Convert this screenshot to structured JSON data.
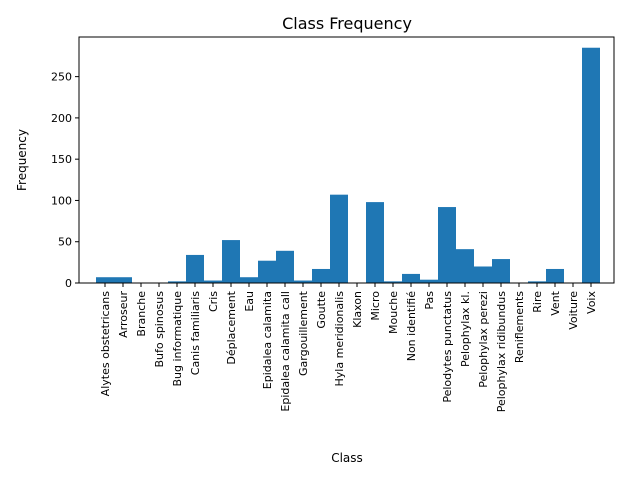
{
  "chart_data": {
    "type": "bar",
    "title": "Class Frequency",
    "xlabel": "Class",
    "ylabel": "Frequency",
    "ylim": [
      0,
      298
    ],
    "yticks": [
      0,
      50,
      100,
      150,
      200,
      250
    ],
    "grid": false,
    "bar_color": "#1f77b4",
    "categories": [
      "Alytes obstetricans",
      "Arroseur",
      "Branche",
      "Bufo spinosus",
      "Bug informatique",
      "Canis familiaris",
      "Cris",
      "Déplacement",
      "Eau",
      "Epidalea calamita",
      "Epidalea calamita call",
      "Gargouillement",
      "Goutte",
      "Hyla meridionalis",
      "Klaxon",
      "Micro",
      "Mouche",
      "Non identifié",
      "Pas",
      "Pelodytes punctatus",
      "Pelophylax kl.",
      "Pelophylax perezi",
      "Pelophylax ridibundus",
      "Reniflements",
      "Rire",
      "Vent",
      "Voiture",
      "Voix"
    ],
    "values": [
      7,
      7,
      0,
      0,
      2,
      34,
      3,
      52,
      7,
      27,
      39,
      3,
      17,
      107,
      0,
      98,
      2,
      11,
      4,
      92,
      41,
      20,
      29,
      0,
      2,
      17,
      0,
      285
    ]
  }
}
